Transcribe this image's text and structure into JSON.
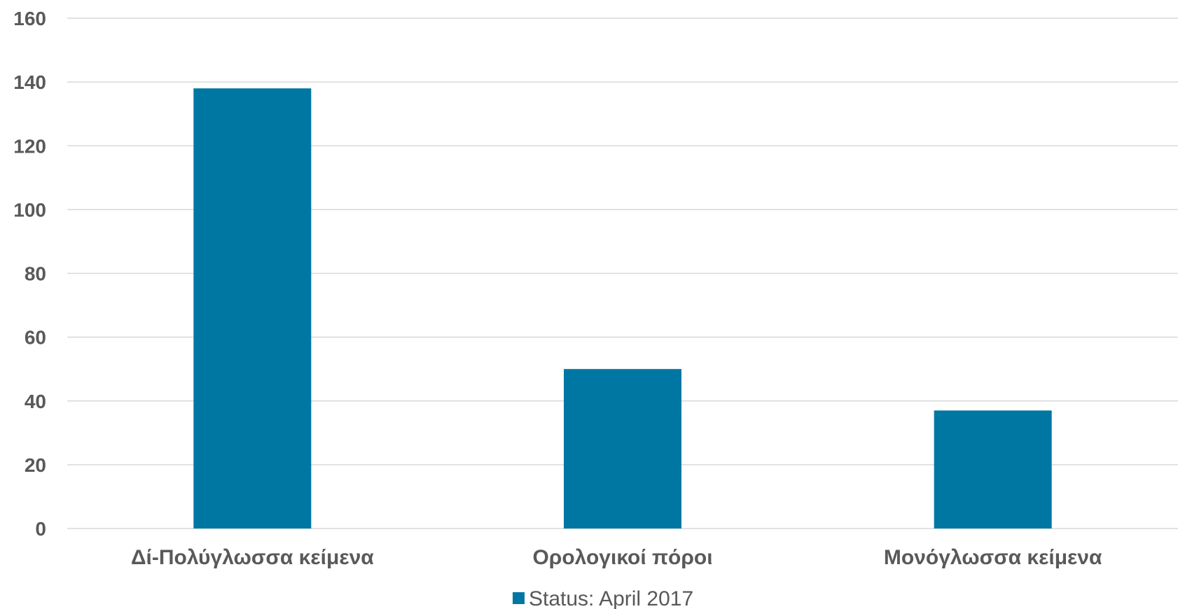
{
  "chart_data": {
    "type": "bar",
    "title": "",
    "xlabel": "",
    "ylabel": "",
    "categories": [
      "Δί-Πολύγλωσσα κείμενα",
      "Ορολογικοί πόροι",
      "Μονόγλωσσα κείμενα"
    ],
    "series": [
      {
        "name": "Status: April 2017",
        "values": [
          138,
          50,
          37
        ],
        "color": "#0077A3"
      }
    ],
    "ylim": [
      0,
      160
    ],
    "yticks": [
      0,
      20,
      40,
      60,
      80,
      100,
      120,
      140,
      160
    ],
    "grid": true,
    "gridline_color": "#D9D9D9",
    "legend_placement": "bottom-center"
  }
}
